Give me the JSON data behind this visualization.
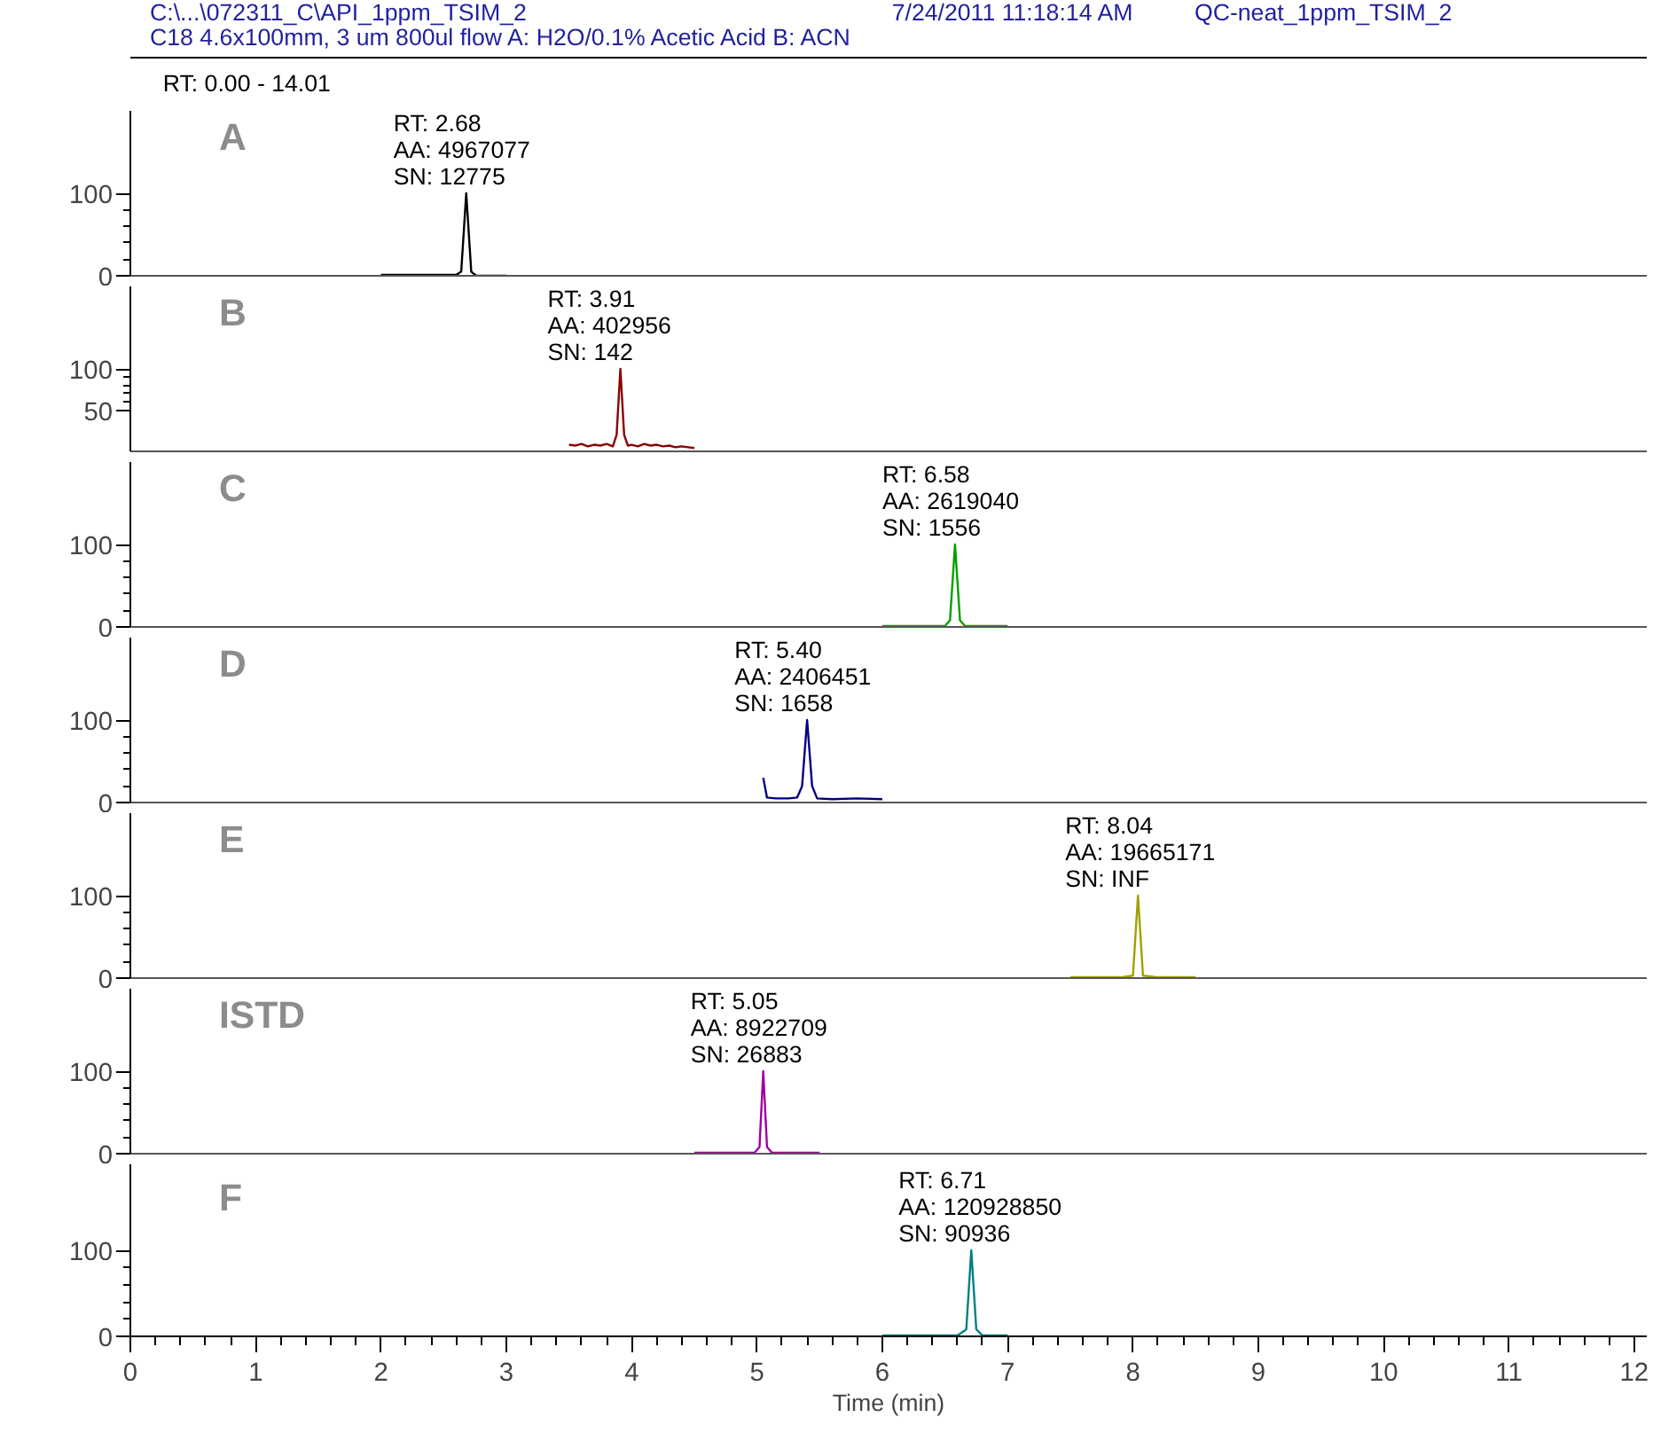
{
  "chart_data": [
    {
      "type": "line",
      "title": "A",
      "xlim": [
        0,
        12.1
      ],
      "ylim": [
        0,
        200
      ],
      "yticks": [
        0,
        100
      ],
      "xticks": [
        0,
        1,
        2,
        3,
        4,
        5,
        6,
        7,
        8,
        9,
        10,
        11,
        12
      ],
      "tick_labels": "y",
      "grid": false,
      "marker": "none",
      "line_style": "solid",
      "annotations": [
        "C:\\...\\072311_C\\API_1ppm_TSIM_2",
        "7/24/2011 11:18:14 AM",
        "QC-neat_1ppm_TSIM_2",
        "C18 4.6x100mm, 3 um 800ul flow A: H2O/0.1% Acetic Acid  B: ACN",
        "RT: 0.00 - 14.01",
        {
          "text": "RT: 2.68\nAA: 4967077\nSN: 12775",
          "x": 2.68,
          "y": 100
        }
      ],
      "series": [
        {
          "color": "#000000",
          "x": [
            2.0,
            2.3,
            2.5,
            2.6,
            2.64,
            2.68,
            2.72,
            2.76,
            2.85,
            3.0
          ],
          "values": [
            1,
            1,
            1,
            1,
            5,
            100,
            5,
            0,
            0,
            0
          ]
        }
      ]
    },
    {
      "type": "line",
      "title": "B",
      "xlim": [
        0,
        12.1
      ],
      "ylim": [
        0,
        200
      ],
      "yticks": [
        50,
        100
      ],
      "xticks": [
        0,
        1,
        2,
        3,
        4,
        5,
        6,
        7,
        8,
        9,
        10,
        11,
        12
      ],
      "tick_labels": "y",
      "grid": false,
      "marker": "none",
      "line_style": "solid",
      "annotations": [
        {
          "text": "RT: 3.91\nAA: 402956\nSN: 142",
          "x": 3.91,
          "y": 100
        }
      ],
      "series": [
        {
          "color": "#8b0000",
          "x": [
            3.5,
            3.55,
            3.6,
            3.65,
            3.7,
            3.75,
            3.8,
            3.85,
            3.88,
            3.91,
            3.94,
            3.97,
            4.0,
            4.05,
            4.1,
            4.15,
            4.2,
            4.25,
            4.3,
            4.35,
            4.4,
            4.45,
            4.5
          ],
          "values": [
            8,
            7,
            9,
            6,
            8,
            7,
            9,
            6,
            20,
            100,
            20,
            7,
            8,
            6,
            9,
            7,
            8,
            6,
            7,
            5,
            6,
            5,
            4
          ]
        }
      ]
    },
    {
      "type": "line",
      "title": "C",
      "xlim": [
        0,
        12.1
      ],
      "ylim": [
        0,
        200
      ],
      "yticks": [
        0,
        100
      ],
      "xticks": [
        0,
        1,
        2,
        3,
        4,
        5,
        6,
        7,
        8,
        9,
        10,
        11,
        12
      ],
      "tick_labels": "y",
      "grid": false,
      "marker": "none",
      "line_style": "solid",
      "annotations": [
        {
          "text": "RT: 6.58\nAA: 2619040\nSN: 1556",
          "x": 6.58,
          "y": 100
        }
      ],
      "series": [
        {
          "color": "#00a000",
          "x": [
            6.0,
            6.3,
            6.5,
            6.54,
            6.58,
            6.62,
            6.66,
            6.8,
            7.0
          ],
          "values": [
            1,
            1,
            1,
            8,
            100,
            8,
            1,
            1,
            1
          ]
        }
      ]
    },
    {
      "type": "line",
      "title": "D",
      "xlim": [
        0,
        12.1
      ],
      "ylim": [
        0,
        200
      ],
      "yticks": [
        0,
        100
      ],
      "xticks": [
        0,
        1,
        2,
        3,
        4,
        5,
        6,
        7,
        8,
        9,
        10,
        11,
        12
      ],
      "tick_labels": "y",
      "grid": false,
      "marker": "none",
      "line_style": "solid",
      "annotations": [
        {
          "text": "RT: 5.40\nAA: 2406451\nSN: 1658",
          "x": 5.4,
          "y": 100
        }
      ],
      "series": [
        {
          "color": "#000080",
          "x": [
            5.05,
            5.08,
            5.15,
            5.25,
            5.32,
            5.36,
            5.4,
            5.44,
            5.48,
            5.6,
            5.8,
            6.0
          ],
          "values": [
            30,
            6,
            5,
            5,
            6,
            20,
            100,
            20,
            5,
            4,
            5,
            4
          ]
        }
      ]
    },
    {
      "type": "line",
      "title": "E",
      "xlim": [
        0,
        12.1
      ],
      "ylim": [
        0,
        200
      ],
      "yticks": [
        0,
        100
      ],
      "xticks": [
        0,
        1,
        2,
        3,
        4,
        5,
        6,
        7,
        8,
        9,
        10,
        11,
        12
      ],
      "tick_labels": "y",
      "grid": false,
      "marker": "none",
      "line_style": "solid",
      "annotations": [
        {
          "text": "RT: 8.04\nAA: 19665171\nSN: INF",
          "x": 8.04,
          "y": 100
        }
      ],
      "series": [
        {
          "color": "#a0a000",
          "x": [
            7.5,
            7.9,
            8.0,
            8.04,
            8.08,
            8.2,
            8.5
          ],
          "values": [
            1,
            1,
            3,
            100,
            3,
            1,
            1
          ]
        }
      ]
    },
    {
      "type": "line",
      "title": "ISTD",
      "xlim": [
        0,
        12.1
      ],
      "ylim": [
        0,
        200
      ],
      "yticks": [
        0,
        100
      ],
      "xticks": [
        0,
        1,
        2,
        3,
        4,
        5,
        6,
        7,
        8,
        9,
        10,
        11,
        12
      ],
      "tick_labels": "y",
      "grid": false,
      "marker": "none",
      "line_style": "solid",
      "annotations": [
        {
          "text": "RT: 5.05\nAA: 8922709\nSN: 26883",
          "x": 5.05,
          "y": 100
        }
      ],
      "series": [
        {
          "color": "#a000a0",
          "x": [
            4.5,
            4.8,
            4.98,
            5.02,
            5.05,
            5.08,
            5.12,
            5.3,
            5.5
          ],
          "values": [
            1,
            1,
            1,
            8,
            100,
            8,
            1,
            1,
            1
          ]
        }
      ]
    },
    {
      "type": "line",
      "title": "F",
      "xlim": [
        0,
        12.1
      ],
      "ylim": [
        0,
        200
      ],
      "yticks": [
        0,
        100
      ],
      "xticks": [
        0,
        1,
        2,
        3,
        4,
        5,
        6,
        7,
        8,
        9,
        10,
        11,
        12
      ],
      "xlabel": "Time (min)",
      "grid": false,
      "marker": "none",
      "line_style": "solid",
      "annotations": [
        {
          "text": "RT: 6.71\nAA: 120928850\nSN: 90936",
          "x": 6.71,
          "y": 100
        }
      ],
      "series": [
        {
          "color": "#008080",
          "x": [
            6.0,
            6.3,
            6.6,
            6.67,
            6.71,
            6.75,
            6.8,
            6.9,
            7.0
          ],
          "values": [
            1,
            1,
            1,
            8,
            100,
            8,
            1,
            1,
            1
          ]
        }
      ]
    }
  ]
}
